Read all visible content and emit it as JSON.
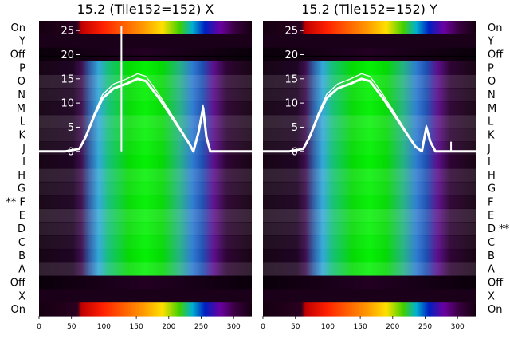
{
  "chart_data": {
    "type": "heatmap",
    "x_ticks": [
      0,
      50,
      100,
      150,
      200,
      250,
      300
    ],
    "xlim": [
      0,
      328
    ],
    "y_ticks": [
      0,
      5,
      10,
      15,
      20,
      25
    ],
    "ylim": [
      -34,
      27
    ],
    "row_labels": [
      "On",
      "Y",
      "Off",
      "P",
      "O",
      "N",
      "M",
      "L",
      "K",
      "J",
      "I",
      "H",
      "G",
      "F",
      "E",
      "D",
      "C",
      "B",
      "A",
      "Off",
      "X",
      "On"
    ],
    "panels": [
      {
        "title": "15.2 (Tile152=152) X",
        "label_side": "left",
        "marked_row": "F",
        "marker": "**",
        "spike": {
          "x": 127,
          "y": 26
        },
        "envelope": [
          [
            0,
            0
          ],
          [
            40,
            0
          ],
          [
            62,
            0.5
          ],
          [
            72,
            3
          ],
          [
            84,
            7
          ],
          [
            98,
            11
          ],
          [
            115,
            13
          ],
          [
            135,
            14
          ],
          [
            152,
            15
          ],
          [
            165,
            14.5
          ],
          [
            185,
            11
          ],
          [
            205,
            7
          ],
          [
            220,
            4
          ],
          [
            232,
            1.5
          ],
          [
            238,
            0
          ],
          [
            246,
            4
          ],
          [
            253,
            9
          ],
          [
            258,
            3
          ],
          [
            264,
            0
          ],
          [
            328,
            0
          ]
        ]
      },
      {
        "title": "15.2 (Tile152=152) Y",
        "label_side": "right",
        "marked_row": "D",
        "marker": "**",
        "spike": {
          "x": 290,
          "y": 2
        },
        "envelope": [
          [
            0,
            0
          ],
          [
            40,
            0
          ],
          [
            62,
            0.5
          ],
          [
            72,
            3
          ],
          [
            84,
            7
          ],
          [
            98,
            11
          ],
          [
            115,
            13
          ],
          [
            135,
            14
          ],
          [
            152,
            15
          ],
          [
            165,
            14.5
          ],
          [
            185,
            11
          ],
          [
            205,
            7
          ],
          [
            220,
            4
          ],
          [
            235,
            1
          ],
          [
            245,
            0
          ],
          [
            252,
            5
          ],
          [
            258,
            2
          ],
          [
            266,
            0
          ],
          [
            328,
            0
          ]
        ]
      }
    ]
  }
}
